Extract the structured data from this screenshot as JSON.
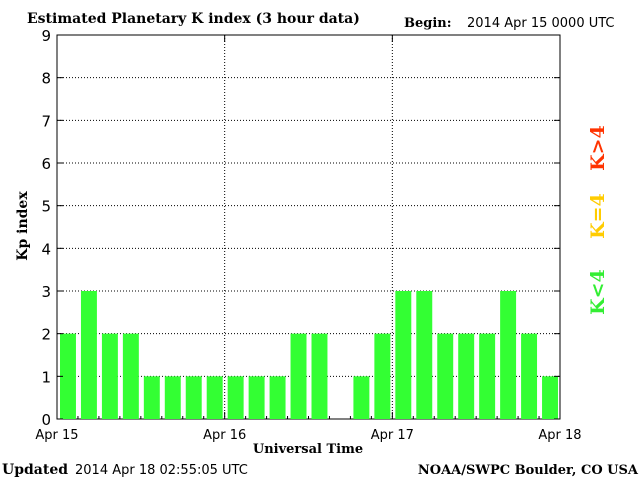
{
  "title": "Estimated Planetary K index (3 hour data)",
  "begin_label": "Begin:",
  "begin_value": "2014 Apr 15 0000 UTC",
  "updated_label": "Updated",
  "updated_value": "2014 Apr 18 02:55:05 UTC",
  "credit": "NOAA/SWPC Boulder, CO USA",
  "legend": [
    {
      "text": "K>4",
      "color": "#ff3300"
    },
    {
      "text": "K=4",
      "color": "#ffcc00"
    },
    {
      "text": "K<4",
      "color": "#33ee33"
    }
  ],
  "chart_data": {
    "type": "bar",
    "title": "Estimated Planetary K index (3 hour data)",
    "xlabel": "Universal Time",
    "ylabel": "Kp index",
    "ylim": [
      0,
      9
    ],
    "yticks": [
      0,
      1,
      2,
      3,
      4,
      5,
      6,
      7,
      8,
      9
    ],
    "xlim": [
      0,
      24
    ],
    "xticks": [
      {
        "pos": 0,
        "label": "Apr 15"
      },
      {
        "pos": 8,
        "label": "Apr 16"
      },
      {
        "pos": 16,
        "label": "Apr 17"
      },
      {
        "pos": 24,
        "label": "Apr 18"
      }
    ],
    "grid": true,
    "legend_position": "right",
    "bar_color": "#33ff33",
    "series": [
      {
        "values": [
          2,
          3,
          2,
          2,
          1,
          1,
          1,
          1,
          1,
          1,
          1,
          2,
          2,
          null,
          1,
          2,
          3,
          3,
          2,
          2,
          2,
          3,
          2,
          1
        ]
      }
    ]
  }
}
